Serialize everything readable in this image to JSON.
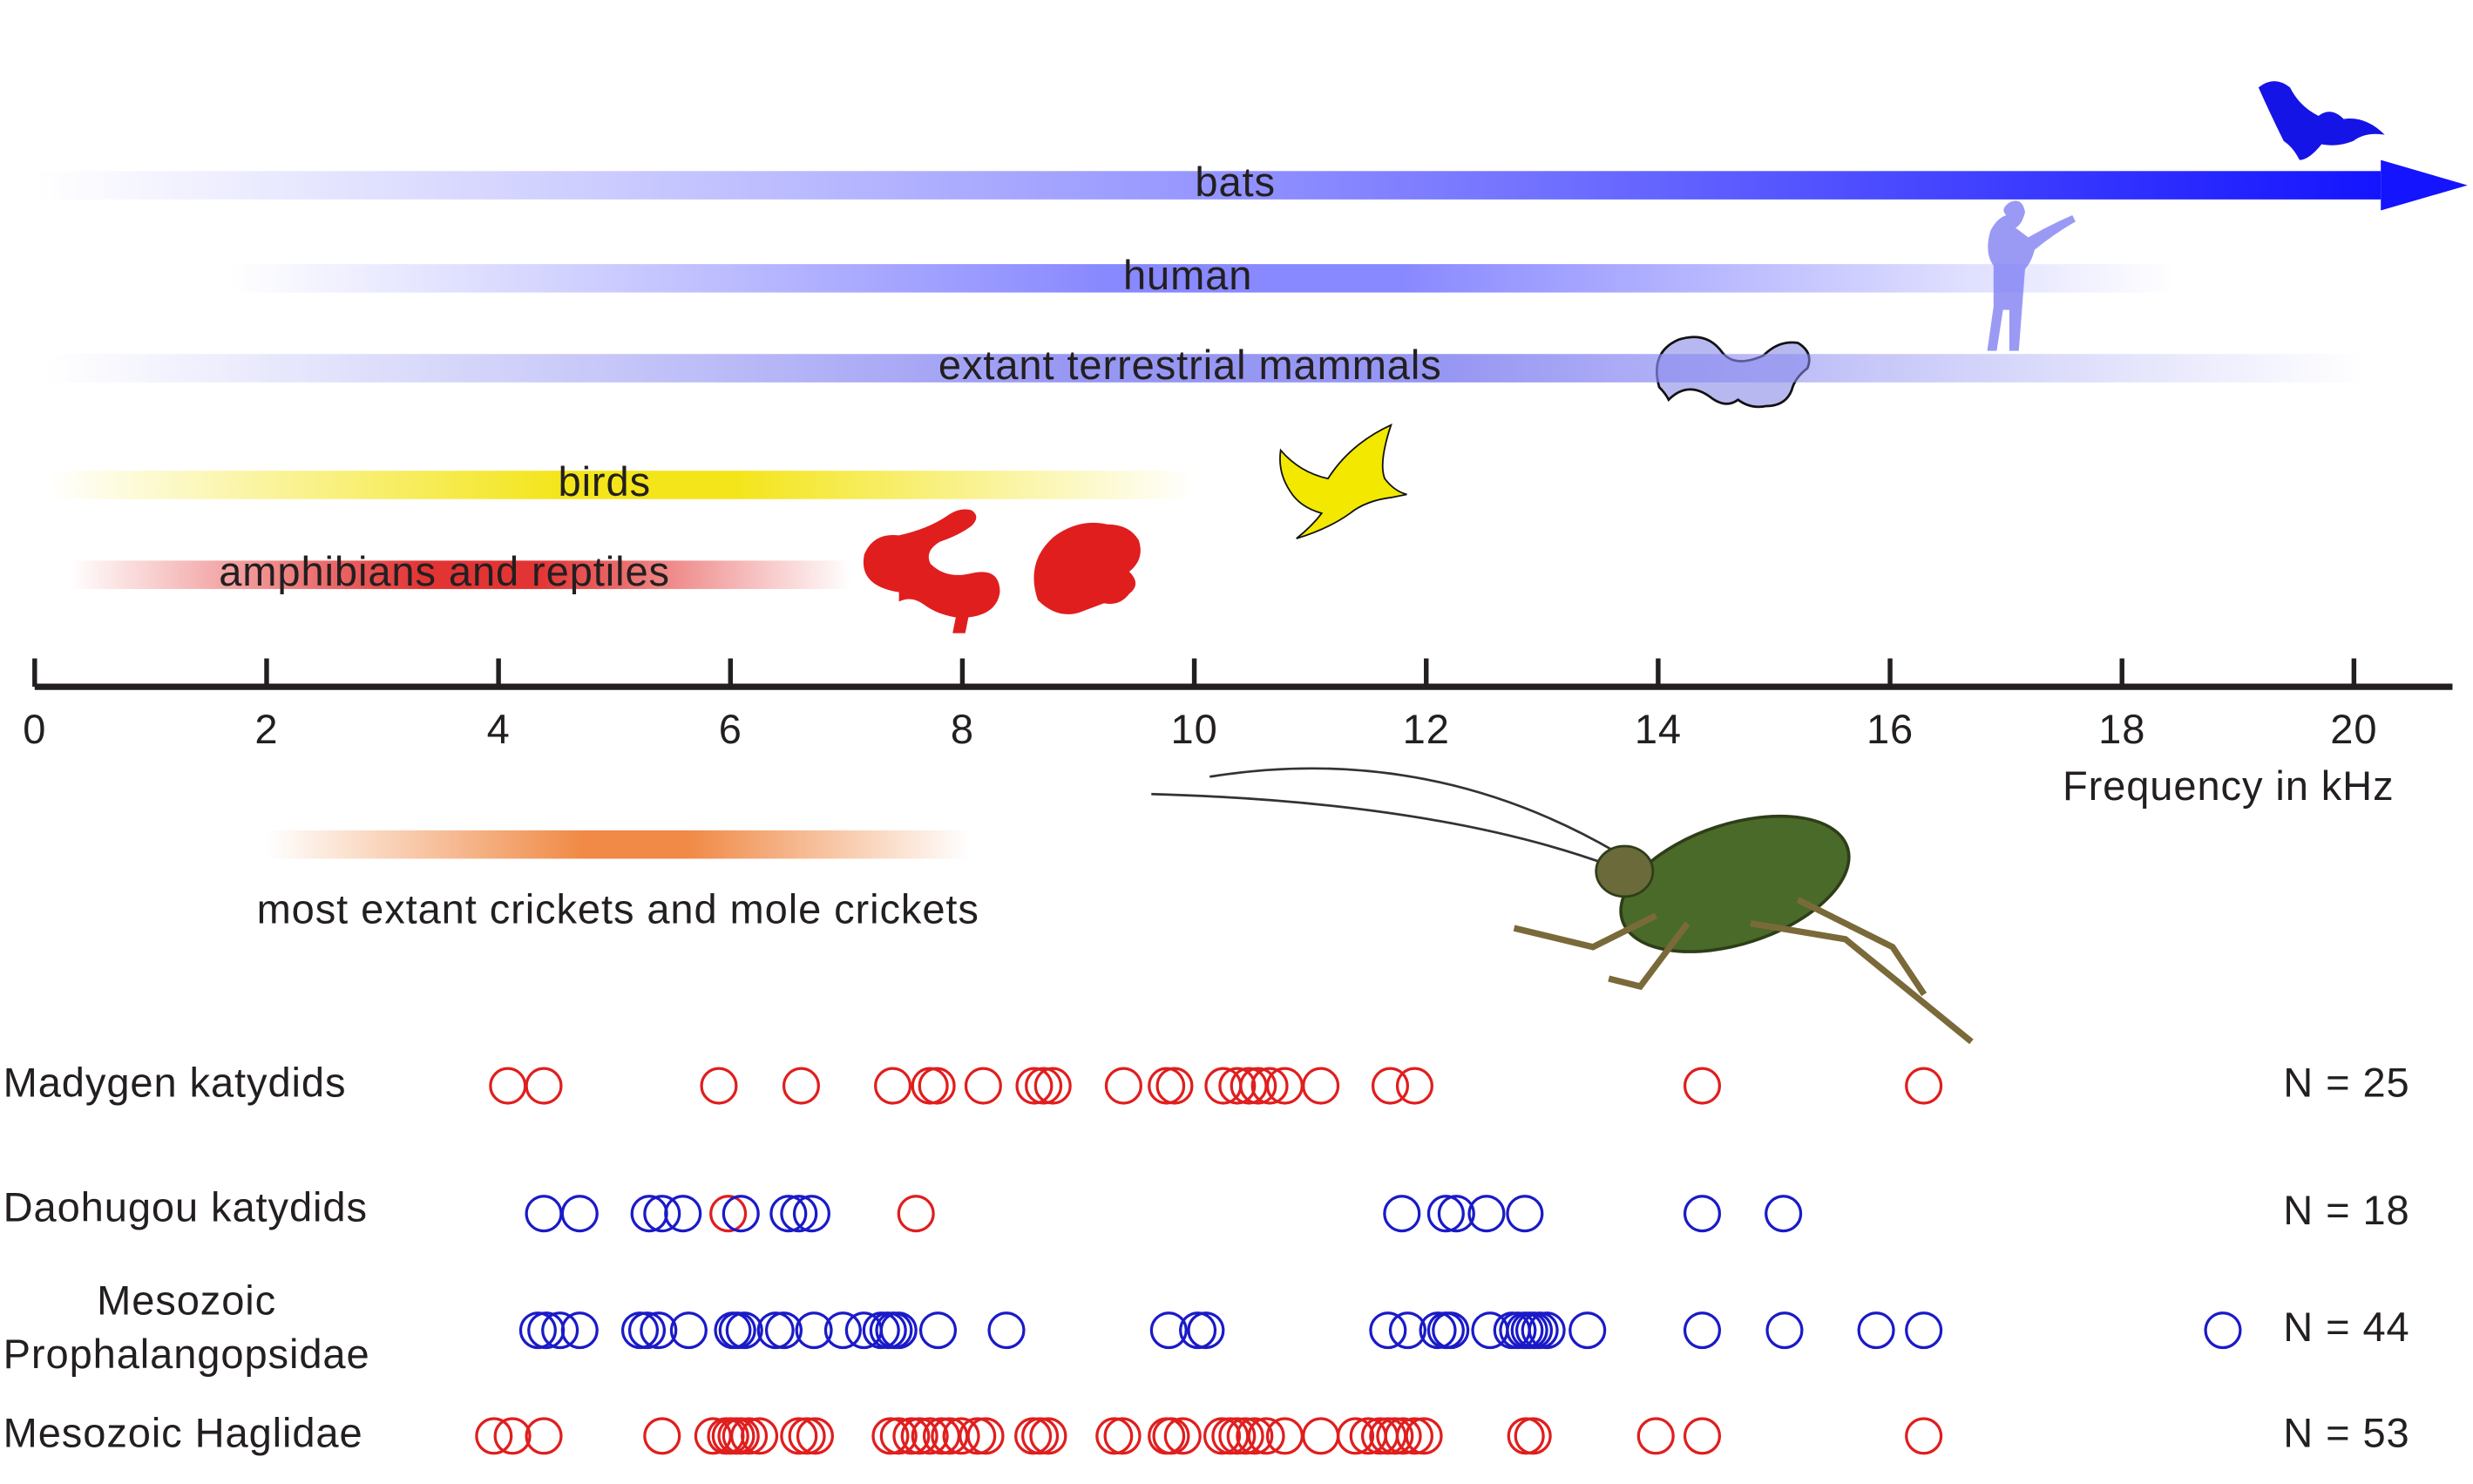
{
  "chart_data": {
    "type": "strip",
    "x_label": "Frequency in kHz",
    "xlim": [
      0,
      20.85
    ],
    "xticks": [
      0,
      2,
      4,
      6,
      8,
      10,
      12,
      14,
      16,
      18,
      20
    ],
    "ranges": [
      {
        "name": "bats",
        "color": "#1414ff",
        "values": [
          0,
          20.98
        ],
        "arrow": true
      },
      {
        "name": "human",
        "color": "#7b7bff",
        "values": [
          1.7,
          18.46
        ]
      },
      {
        "name": "extant terrestrial mammals",
        "color": "#8a8af2",
        "values": [
          0.1,
          20.1
        ]
      },
      {
        "name": "birds",
        "color": "#f2e200",
        "values": [
          0.1,
          10
        ]
      },
      {
        "name": "amphibians and reptiles",
        "color": "#e01e1e",
        "values": [
          0.3,
          7.04
        ]
      },
      {
        "name": "most extant crickets and mole crickets",
        "color": "#ee7d32",
        "values": [
          2,
          8.06
        ]
      }
    ],
    "series": [
      {
        "name": "Madygen katydids",
        "color": "#e01e1e",
        "n_label": "N = 25",
        "values": [
          4.08,
          4.39,
          5.9,
          6.61,
          7.4,
          7.72,
          7.78,
          8.18,
          8.62,
          8.7,
          8.78,
          9.39,
          9.76,
          9.83,
          10.25,
          10.37,
          10.47,
          10.55,
          10.65,
          10.78,
          11.09,
          11.69,
          11.9,
          14.38,
          16.29
        ]
      },
      {
        "name": "Daohugou katydids",
        "color": "#1a1ac8",
        "n_label": "N = 18",
        "values": [
          4.39,
          4.7,
          5.3,
          5.41,
          5.59,
          5.98,
          6.09,
          6.5,
          6.59,
          6.7,
          7.6,
          11.79,
          12.17,
          12.26,
          12.52,
          12.85,
          14.38,
          15.08
        ],
        "point_colors": [
          "#1a1ac8",
          "#1a1ac8",
          "#1a1ac8",
          "#1a1ac8",
          "#1a1ac8",
          "#e01e1e",
          "#1a1ac8",
          "#1a1ac8",
          "#1a1ac8",
          "#1a1ac8",
          "#e01e1e",
          "#1a1ac8",
          "#1a1ac8",
          "#1a1ac8",
          "#1a1ac8",
          "#1a1ac8",
          "#1a1ac8",
          "#1a1ac8"
        ]
      },
      {
        "name": "Mesozoic\nProphalangopsidae",
        "color": "#1a1ac8",
        "n_label": "N = 44",
        "values": [
          4.34,
          4.41,
          4.53,
          4.7,
          5.22,
          5.28,
          5.38,
          5.64,
          6.02,
          6.06,
          6.12,
          6.39,
          6.46,
          6.72,
          6.97,
          7.15,
          7.3,
          7.36,
          7.41,
          7.45,
          7.79,
          8.38,
          9.78,
          10.03,
          10.1,
          11.67,
          11.84,
          12.1,
          12.17,
          12.21,
          12.55,
          12.74,
          12.79,
          12.85,
          12.89,
          12.93,
          12.98,
          13.04,
          13.39,
          14.38,
          15.09,
          15.88,
          16.29,
          18.87
        ]
      },
      {
        "name": "Mesozoic Haglidae",
        "color": "#e01e1e",
        "n_label": "N = 53",
        "values": [
          3.96,
          4.12,
          4.39,
          5.41,
          5.85,
          5.96,
          6.0,
          6.05,
          6.09,
          6.16,
          6.25,
          6.59,
          6.66,
          6.73,
          7.38,
          7.45,
          7.56,
          7.63,
          7.72,
          7.82,
          7.89,
          7.99,
          8.13,
          8.2,
          8.61,
          8.67,
          8.74,
          9.31,
          9.38,
          9.76,
          9.8,
          9.9,
          10.24,
          10.31,
          10.37,
          10.44,
          10.52,
          10.62,
          10.78,
          11.09,
          11.39,
          11.5,
          11.6,
          11.67,
          11.73,
          11.8,
          11.9,
          11.98,
          12.86,
          12.92,
          13.98,
          14.38,
          16.29
        ]
      }
    ]
  }
}
